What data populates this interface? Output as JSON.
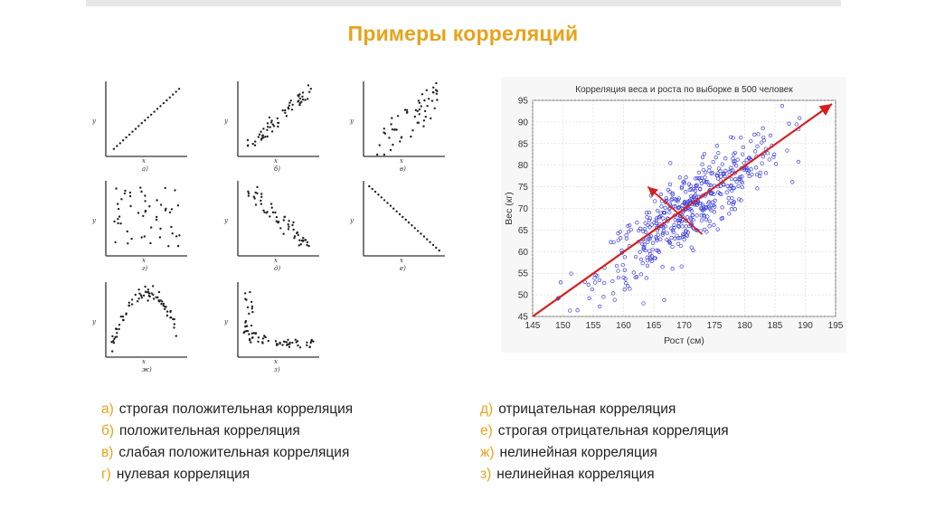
{
  "title": "Примеры корреляций",
  "mini_plots": [
    {
      "id": "a",
      "axis_y": "y",
      "axis_x": "x",
      "caption": "а)",
      "pattern": "strict-positive"
    },
    {
      "id": "b",
      "axis_y": "y",
      "axis_x": "x",
      "caption": "б)",
      "pattern": "positive"
    },
    {
      "id": "c",
      "axis_y": "y",
      "axis_x": "x",
      "caption": "в)",
      "pattern": "weak-positive"
    },
    {
      "id": "d",
      "axis_y": "y",
      "axis_x": "x",
      "caption": "г)",
      "pattern": "zero"
    },
    {
      "id": "e",
      "axis_y": "y",
      "axis_x": "x",
      "caption": "д)",
      "pattern": "negative"
    },
    {
      "id": "f",
      "axis_y": "y",
      "axis_x": "x",
      "caption": "е)",
      "pattern": "strict-negative"
    },
    {
      "id": "g",
      "axis_y": "y",
      "axis_x": "x",
      "caption": "ж)",
      "pattern": "nonlinear-arch"
    },
    {
      "id": "h",
      "axis_y": "y",
      "axis_x": "x",
      "caption": "з)",
      "pattern": "nonlinear-decay"
    }
  ],
  "chart_data": {
    "type": "scatter",
    "title": "Корреляция веса и роста по выборке в 500 человек",
    "xlabel": "Рост (см)",
    "ylabel": "Вес (кг)",
    "xlim": [
      145,
      195
    ],
    "ylim": [
      45,
      95
    ],
    "xticks": [
      145,
      150,
      155,
      160,
      165,
      170,
      175,
      180,
      185,
      190,
      195
    ],
    "yticks": [
      45,
      50,
      55,
      60,
      65,
      70,
      75,
      80,
      85,
      90,
      95
    ],
    "grid": true,
    "n_points": 500,
    "marker_color": "#3c3fd6",
    "trend_arrow": {
      "color": "#d62020",
      "from": [
        145,
        45
      ],
      "to": [
        195,
        95
      ]
    },
    "cross_arrow": {
      "color": "#d62020",
      "from": [
        173,
        64
      ],
      "to": [
        164,
        75
      ]
    }
  },
  "legend_left": [
    {
      "marker": "а)",
      "text": "строгая положительная корреляция"
    },
    {
      "marker": "б)",
      "text": "положительная корреляция"
    },
    {
      "marker": "в)",
      "text": "слабая положительная корреляция"
    },
    {
      "marker": "г)",
      "text": "нулевая корреляция"
    }
  ],
  "legend_right": [
    {
      "marker": "д)",
      "text": "отрицательная корреляция"
    },
    {
      "marker": "е)",
      "text": "строгая отрицательная корреляция"
    },
    {
      "marker": "ж)",
      "text": "нелинейная корреляция"
    },
    {
      "marker": "з)",
      "text": "нелинейная корреляция"
    }
  ]
}
